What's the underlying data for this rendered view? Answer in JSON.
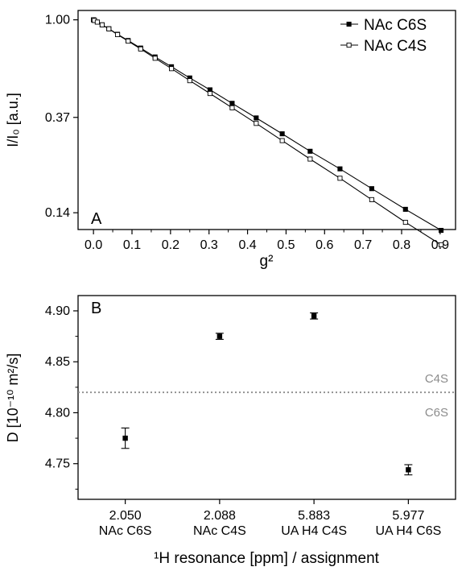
{
  "chart_data": [
    {
      "panel_label": "A",
      "type": "line",
      "xlabel": "g²",
      "ylabel": "I/I₀ [a.u.]",
      "y_scale": "log",
      "xlim": [
        -0.04,
        0.94
      ],
      "ylim": [
        0.118,
        1.1
      ],
      "x_ticks": [
        0.0,
        0.1,
        0.2,
        0.3,
        0.4,
        0.5,
        0.6,
        0.7,
        0.8,
        0.9
      ],
      "x_tick_labels": [
        "0.0",
        "0.1",
        "0.2",
        "0.3",
        "0.4",
        "0.5",
        "0.6",
        "0.7",
        "0.8",
        "0.9"
      ],
      "y_ticks": [
        1.0,
        0.37,
        0.14
      ],
      "y_tick_labels": [
        "1.00",
        "0.37",
        "0.14"
      ],
      "legend_position": "top-right",
      "x": [
        0.0,
        0.0025,
        0.01,
        0.0225,
        0.04,
        0.0625,
        0.09,
        0.1225,
        0.16,
        0.2025,
        0.25,
        0.3025,
        0.36,
        0.4225,
        0.49,
        0.5625,
        0.64,
        0.7225,
        0.81,
        0.9025
      ],
      "series": [
        {
          "name": "NAc C6S",
          "marker": "filled-square",
          "values": [
            1.0,
            0.994,
            0.977,
            0.95,
            0.913,
            0.863,
            0.81,
            0.75,
            0.685,
            0.62,
            0.553,
            0.49,
            0.427,
            0.368,
            0.313,
            0.262,
            0.219,
            0.179,
            0.145,
            0.117
          ]
        },
        {
          "name": "NAc C4S",
          "marker": "open-square",
          "values": [
            1.0,
            0.994,
            0.977,
            0.95,
            0.912,
            0.86,
            0.805,
            0.743,
            0.676,
            0.608,
            0.538,
            0.472,
            0.408,
            0.348,
            0.292,
            0.242,
            0.199,
            0.16,
            0.127,
            0.101
          ]
        }
      ]
    },
    {
      "panel_label": "B",
      "type": "scatter",
      "xlabel": "¹H resonance [ppm] / assignment",
      "ylabel": "D [10⁻¹⁰ m²/s]",
      "ylim": [
        4.715,
        4.915
      ],
      "y_ticks": [
        4.75,
        4.8,
        4.85,
        4.9
      ],
      "y_tick_labels": [
        "4.75",
        "4.80",
        "4.85",
        "4.90"
      ],
      "categories": [
        "2.050",
        "2.088",
        "5.883",
        "5.977"
      ],
      "assignments": [
        "NAc C6S",
        "NAc C4S",
        "UA H4 C4S",
        "UA H4 C6S"
      ],
      "values": [
        4.775,
        4.875,
        4.895,
        4.744
      ],
      "errors": [
        0.01,
        0.003,
        0.003,
        0.005
      ],
      "reference_line": {
        "value": 4.82,
        "style": "dotted",
        "color": "#8c8c8c",
        "label_above": "C4S",
        "label_below": "C6S"
      }
    }
  ],
  "colors": {
    "axis": "#000000",
    "reference": "#8c8c8c"
  }
}
